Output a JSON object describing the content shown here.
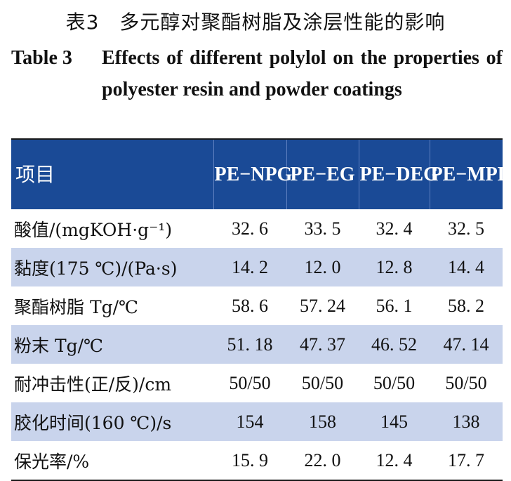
{
  "title_cn": "表3　多元醇对聚酯树脂及涂层性能的影响",
  "title_en_label": "Table 3",
  "title_en_text": "Effects of different polylol on the properties of polyester resin and powder coatings",
  "table": {
    "header_item": "项目",
    "columns": [
      "PE−NPG",
      "PE−EG",
      "PE−DEG",
      "PE−MPD"
    ],
    "rows": [
      {
        "item": "酸值/(mgKOH·g⁻¹)",
        "values": [
          "32. 6",
          "33. 5",
          "32. 4",
          "32. 5"
        ]
      },
      {
        "item": "黏度(175 ℃)/(Pa·s)",
        "values": [
          "14. 2",
          "12. 0",
          "12. 8",
          "14. 4"
        ]
      },
      {
        "item": "聚酯树脂 Tg/℃",
        "values": [
          "58. 6",
          "57. 24",
          "56. 1",
          "58. 2"
        ]
      },
      {
        "item": "粉末 Tg/℃",
        "values": [
          "51. 18",
          "47. 37",
          "46. 52",
          "47. 14"
        ]
      },
      {
        "item": "耐冲击性(正/反)/cm",
        "values": [
          "50/50",
          "50/50",
          "50/50",
          "50/50"
        ]
      },
      {
        "item": "胶化时间(160 ℃)/s",
        "values": [
          "154",
          "158",
          "145",
          "138"
        ]
      },
      {
        "item": "保光率/%",
        "values": [
          "15. 9",
          "22. 0",
          "12. 4",
          "17. 7"
        ]
      }
    ]
  }
}
